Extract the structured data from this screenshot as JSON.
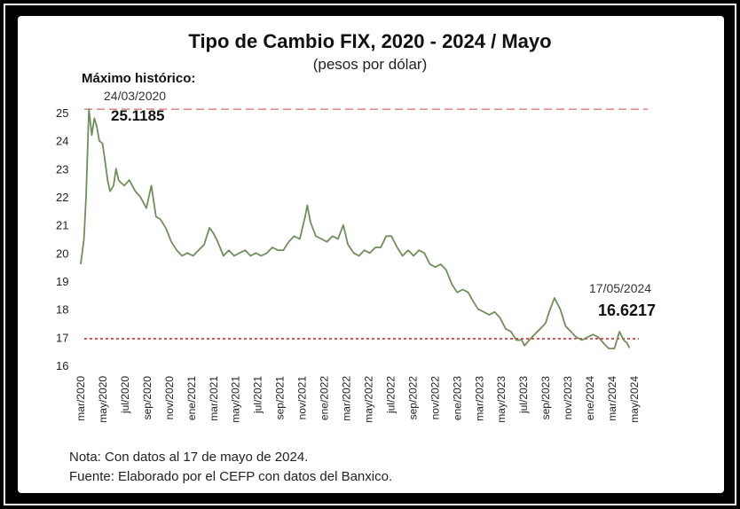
{
  "chart_data": {
    "type": "line",
    "title": "Tipo de Cambio FIX, 2020 - 2024 / Mayo",
    "subtitle": "(pesos por dólar)",
    "ylim": [
      16,
      25
    ],
    "yticks": [
      16,
      17,
      18,
      19,
      20,
      21,
      22,
      23,
      24,
      25
    ],
    "xticks": [
      "mar/2020",
      "may/2020",
      "jul/2020",
      "sep/2020",
      "nov/2020",
      "ene/2021",
      "mar/2021",
      "may/2021",
      "jul/2021",
      "sep/2021",
      "nov/2021",
      "ene/2022",
      "mar/2022",
      "may/2022",
      "jul/2022",
      "sep/2022",
      "nov/2022",
      "ene/2023",
      "mar/2023",
      "may/2023",
      "jul/2023",
      "sep/2023",
      "nov/2023",
      "ene/2024",
      "mar/2024",
      "may/2024"
    ],
    "grid": false,
    "series": [
      {
        "color": "#6f8f5a",
        "x": [
          "2020-03-01",
          "2020-03-10",
          "2020-03-16",
          "2020-03-24",
          "2020-04-01",
          "2020-04-08",
          "2020-04-15",
          "2020-04-22",
          "2020-05-01",
          "2020-05-08",
          "2020-05-15",
          "2020-05-22",
          "2020-06-01",
          "2020-06-08",
          "2020-06-15",
          "2020-06-22",
          "2020-07-01",
          "2020-07-15",
          "2020-08-01",
          "2020-08-15",
          "2020-09-01",
          "2020-09-15",
          "2020-09-28",
          "2020-10-10",
          "2020-10-25",
          "2020-11-10",
          "2020-11-25",
          "2020-12-10",
          "2020-12-25",
          "2021-01-10",
          "2021-01-25",
          "2021-02-10",
          "2021-02-25",
          "2021-03-08",
          "2021-03-20",
          "2021-04-05",
          "2021-04-20",
          "2021-05-05",
          "2021-05-20",
          "2021-06-05",
          "2021-06-20",
          "2021-07-05",
          "2021-07-20",
          "2021-08-05",
          "2021-08-20",
          "2021-09-05",
          "2021-09-20",
          "2021-10-05",
          "2021-10-20",
          "2021-11-05",
          "2021-11-20",
          "2021-11-26",
          "2021-12-05",
          "2021-12-20",
          "2022-01-05",
          "2022-01-20",
          "2022-02-05",
          "2022-02-20",
          "2022-03-07",
          "2022-03-20",
          "2022-04-05",
          "2022-04-20",
          "2022-05-05",
          "2022-05-20",
          "2022-06-05",
          "2022-06-20",
          "2022-07-05",
          "2022-07-20",
          "2022-08-05",
          "2022-08-20",
          "2022-09-05",
          "2022-09-20",
          "2022-10-05",
          "2022-10-20",
          "2022-11-05",
          "2022-11-20",
          "2022-12-05",
          "2022-12-20",
          "2023-01-05",
          "2023-01-20",
          "2023-02-05",
          "2023-02-20",
          "2023-03-05",
          "2023-03-20",
          "2023-04-05",
          "2023-04-20",
          "2023-05-05",
          "2023-05-20",
          "2023-06-05",
          "2023-06-20",
          "2023-07-05",
          "2023-07-20",
          "2023-07-28",
          "2023-08-10",
          "2023-08-25",
          "2023-09-10",
          "2023-09-25",
          "2023-10-05",
          "2023-10-20",
          "2023-11-05",
          "2023-11-20",
          "2023-12-05",
          "2023-12-20",
          "2024-01-05",
          "2024-01-20",
          "2024-02-05",
          "2024-02-20",
          "2024-03-05",
          "2024-03-20",
          "2024-04-05",
          "2024-04-19",
          "2024-05-01",
          "2024-05-10",
          "2024-05-17"
        ],
        "values": [
          19.6,
          20.5,
          22.0,
          25.12,
          24.2,
          24.8,
          24.5,
          24.0,
          23.9,
          23.3,
          22.6,
          22.2,
          22.4,
          23.0,
          22.6,
          22.5,
          22.4,
          22.6,
          22.2,
          22.0,
          21.6,
          22.4,
          21.3,
          21.2,
          20.9,
          20.4,
          20.1,
          19.9,
          20.0,
          19.9,
          20.1,
          20.3,
          20.9,
          20.7,
          20.4,
          19.9,
          20.1,
          19.9,
          20.0,
          20.1,
          19.9,
          20.0,
          19.9,
          20.0,
          20.2,
          20.1,
          20.1,
          20.4,
          20.6,
          20.5,
          21.3,
          21.7,
          21.1,
          20.6,
          20.5,
          20.4,
          20.6,
          20.5,
          21.0,
          20.3,
          20.0,
          19.9,
          20.1,
          20.0,
          20.2,
          20.2,
          20.6,
          20.6,
          20.2,
          19.9,
          20.1,
          19.9,
          20.1,
          20.0,
          19.6,
          19.5,
          19.6,
          19.4,
          18.9,
          18.6,
          18.7,
          18.6,
          18.3,
          18.0,
          17.9,
          17.8,
          17.9,
          17.7,
          17.3,
          17.2,
          16.9,
          16.9,
          16.7,
          16.9,
          17.1,
          17.3,
          17.5,
          17.9,
          18.4,
          18.0,
          17.4,
          17.2,
          17.0,
          16.9,
          17.0,
          17.1,
          17.0,
          16.8,
          16.6,
          16.6,
          17.2,
          16.9,
          16.8,
          16.62
        ]
      }
    ],
    "reference_lines": [
      {
        "value": 25.12,
        "color": "#e58b8b",
        "style": "dashed"
      },
      {
        "value": 16.95,
        "color": "#d32f2f",
        "style": "dotted"
      }
    ],
    "annotations": {
      "max_label": "Máximo histórico:",
      "max_date": "24/03/2020",
      "max_value": "25.1185",
      "last_date": "17/05/2024",
      "last_value": "16.6217"
    },
    "notes": [
      "Nota: Con datos al 17 de mayo de 2024.",
      "Fuente: Elaborado por el CEFP con datos del Banxico."
    ]
  }
}
